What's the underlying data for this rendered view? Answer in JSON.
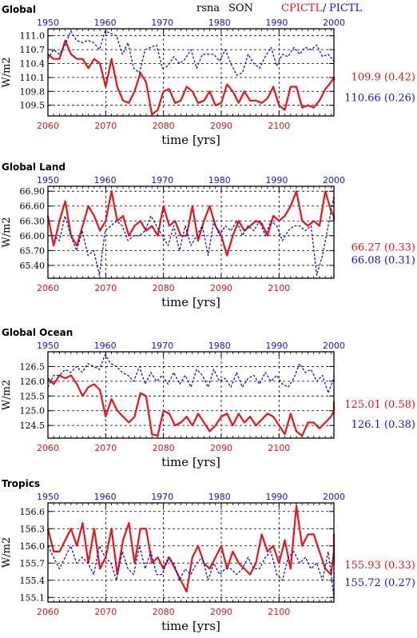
{
  "header": {
    "variable": "rsna",
    "season": "SON",
    "legend_red": "CPICTL",
    "legend_sep": "/",
    "legend_blue": "PICTL"
  },
  "colors": {
    "red": "#e8141a",
    "blue": "#1414d0",
    "black": "#000000"
  },
  "chart_data": [
    {
      "type": "line",
      "title": "Global",
      "xlabel": "time [yrs]",
      "ylabel": "W/m2",
      "grid": true,
      "x_bottom_ticks": [
        "2060",
        "2070",
        "2080",
        "2090",
        "2100"
      ],
      "x_top_ticks": [
        "1950",
        "1960",
        "1970",
        "1980",
        "1990",
        "2000"
      ],
      "ylim": [
        109.27,
        111.15
      ],
      "yticks": [
        "111.0",
        "110.7",
        "110.4",
        "110.1",
        "109.8",
        "109.5"
      ],
      "series": [
        {
          "name": "CPICTL",
          "axis": "bottom",
          "x_start": 2060,
          "summary": "109.9 (0.42)",
          "values": [
            110.6,
            110.5,
            110.5,
            110.9,
            110.6,
            110.5,
            110.5,
            110.3,
            110.5,
            110.4,
            109.9,
            110.5,
            109.9,
            109.6,
            109.55,
            109.8,
            110.2,
            110.0,
            109.3,
            109.4,
            109.8,
            109.85,
            109.55,
            109.6,
            109.9,
            109.8,
            109.55,
            109.6,
            109.8,
            109.5,
            109.55,
            109.95,
            109.8,
            109.55,
            109.8,
            109.6,
            109.6,
            109.55,
            109.65,
            109.9,
            109.5,
            109.4,
            109.9,
            109.9,
            109.45,
            109.5,
            109.45,
            109.6,
            109.85,
            110.0,
            110.1,
            110.05
          ]
        },
        {
          "name": "PICTL",
          "axis": "top",
          "x_start": 1950,
          "summary": "110.66 (0.26)",
          "values": [
            110.5,
            110.7,
            110.6,
            110.8,
            111.1,
            110.9,
            110.85,
            110.9,
            110.85,
            110.7,
            111.1,
            111.05,
            111.0,
            110.6,
            110.85,
            110.3,
            110.2,
            110.7,
            110.75,
            110.8,
            110.3,
            110.35,
            110.55,
            110.4,
            110.5,
            110.7,
            110.3,
            110.6,
            110.6,
            110.6,
            110.45,
            110.7,
            110.4,
            110.15,
            110.2,
            110.6,
            110.4,
            110.3,
            110.55,
            110.75,
            110.35,
            110.6,
            110.55,
            110.75,
            110.6,
            110.75,
            110.7,
            110.8,
            110.55,
            110.6,
            110.45,
            110.7
          ]
        }
      ]
    },
    {
      "type": "line",
      "title": "Global Land",
      "xlabel": "time [yrs]",
      "ylabel": "W/m2",
      "grid": true,
      "x_bottom_ticks": [
        "2060",
        "2070",
        "2080",
        "2090",
        "2100"
      ],
      "x_top_ticks": [
        "1950",
        "1960",
        "1970",
        "1980",
        "1990",
        "2000"
      ],
      "ylim": [
        65.14,
        67.0
      ],
      "yticks": [
        "66.90",
        "66.60",
        "66.30",
        "66.00",
        "65.70",
        "65.40"
      ],
      "series": [
        {
          "name": "CPICTL",
          "axis": "bottom",
          "x_start": 2060,
          "summary": "66.27 (0.33)",
          "values": [
            66.4,
            65.8,
            66.3,
            66.7,
            66.0,
            65.8,
            66.2,
            66.6,
            66.4,
            66.1,
            66.3,
            66.9,
            66.3,
            66.4,
            66.0,
            66.2,
            66.3,
            66.1,
            66.2,
            66.0,
            66.6,
            66.2,
            66.3,
            66.0,
            66.0,
            66.6,
            65.9,
            66.3,
            66.6,
            66.2,
            66.0,
            65.6,
            66.0,
            66.3,
            66.1,
            66.2,
            66.3,
            66.25,
            66.0,
            66.4,
            66.3,
            66.4,
            66.6,
            66.9,
            66.3,
            66.2,
            66.3,
            66.2,
            66.9,
            66.5,
            66.4,
            66.3
          ]
        },
        {
          "name": "PICTL",
          "axis": "top",
          "x_start": 1950,
          "summary": "66.08 (0.31)",
          "values": [
            66.0,
            66.0,
            65.9,
            66.4,
            66.0,
            65.7,
            66.1,
            65.6,
            65.7,
            65.2,
            66.1,
            66.2,
            66.3,
            66.2,
            65.9,
            66.0,
            66.0,
            66.1,
            66.4,
            66.2,
            66.0,
            65.8,
            66.2,
            65.7,
            66.2,
            65.8,
            66.0,
            66.2,
            65.6,
            66.3,
            66.0,
            66.2,
            66.1,
            66.3,
            66.0,
            66.2,
            66.1,
            66.3,
            66.0,
            66.3,
            66.2,
            65.9,
            66.1,
            66.2,
            66.2,
            66.1,
            66.2,
            65.2,
            65.6,
            66.2,
            66.8,
            66.3
          ]
        }
      ]
    },
    {
      "type": "line",
      "title": "Global Ocean",
      "xlabel": "time [yrs]",
      "ylabel": "W/m2",
      "grid": true,
      "x_bottom_ticks": [
        "2060",
        "2070",
        "2080",
        "2090",
        "2100"
      ],
      "x_top_ticks": [
        "1950",
        "1960",
        "1970",
        "1980",
        "1990",
        "2000"
      ],
      "ylim": [
        124.07,
        127.0
      ],
      "yticks": [
        "126.5",
        "126.0",
        "125.5",
        "125.0",
        "124.5"
      ],
      "series": [
        {
          "name": "CPICTL",
          "axis": "bottom",
          "x_start": 2060,
          "summary": "125.01 (0.58)",
          "values": [
            126.1,
            125.9,
            126.2,
            126.1,
            126.2,
            125.9,
            125.5,
            125.8,
            125.9,
            125.7,
            124.8,
            125.4,
            125.0,
            124.8,
            124.6,
            124.8,
            125.6,
            125.5,
            124.2,
            124.15,
            125.0,
            124.9,
            124.5,
            124.6,
            124.8,
            124.5,
            124.9,
            124.6,
            124.3,
            124.5,
            124.8,
            124.9,
            124.5,
            124.9,
            124.6,
            124.8,
            124.5,
            124.7,
            124.9,
            124.8,
            124.5,
            124.2,
            124.9,
            124.3,
            124.15,
            124.6,
            124.6,
            124.4,
            124.6,
            124.8,
            125.0,
            125.3,
            125.2
          ]
        },
        {
          "name": "PICTL",
          "axis": "top",
          "x_start": 1950,
          "summary": "126.1 (0.38)",
          "values": [
            125.8,
            126.2,
            126.2,
            126.4,
            126.3,
            126.5,
            126.3,
            126.6,
            126.5,
            126.4,
            126.9,
            126.6,
            126.5,
            126.3,
            126.2,
            126.0,
            126.5,
            125.9,
            126.3,
            126.0,
            126.2,
            125.9,
            126.3,
            125.9,
            126.2,
            125.8,
            126.4,
            126.2,
            125.8,
            126.4,
            126.0,
            126.1,
            125.8,
            126.3,
            125.8,
            126.1,
            126.2,
            125.9,
            126.3,
            126.0,
            126.2,
            125.9,
            125.8,
            126.1,
            126.6,
            126.3,
            126.4,
            126.0,
            126.2,
            125.6,
            126.1,
            126.2
          ]
        }
      ]
    },
    {
      "type": "line",
      "title": "Tropics",
      "xlabel": "time [yrs]",
      "ylabel": "W/m2",
      "grid": true,
      "x_bottom_ticks": [
        "2060",
        "2070",
        "2080",
        "2090",
        "2100"
      ],
      "x_top_ticks": [
        "1950",
        "1960",
        "1970",
        "1980",
        "1990",
        "2000"
      ],
      "ylim": [
        155.02,
        156.75
      ],
      "yticks": [
        "156.6",
        "156.3",
        "156.0",
        "155.7",
        "155.4",
        "155.1"
      ],
      "series": [
        {
          "name": "CPICTL",
          "axis": "bottom",
          "x_start": 2060,
          "summary": "155.93 (0.33)",
          "values": [
            156.3,
            155.9,
            155.9,
            156.1,
            156.3,
            156.0,
            156.4,
            155.7,
            156.3,
            155.6,
            155.8,
            156.3,
            155.5,
            156.1,
            156.4,
            155.7,
            156.3,
            156.3,
            155.7,
            155.8,
            155.6,
            155.8,
            155.6,
            155.4,
            155.2,
            155.8,
            156.0,
            155.7,
            155.6,
            155.8,
            156.0,
            155.6,
            155.9,
            155.7,
            155.6,
            155.5,
            155.7,
            156.2,
            155.9,
            156.0,
            155.7,
            156.1,
            155.6,
            156.7,
            156.0,
            156.2,
            156.2,
            155.9,
            155.6,
            155.5,
            155.9,
            155.9,
            156.1,
            156.0,
            156.2,
            155.7
          ]
        },
        {
          "name": "PICTL",
          "axis": "top",
          "x_start": 1950,
          "summary": "155.72 (0.27)",
          "values": [
            156.0,
            155.8,
            155.6,
            155.8,
            156.0,
            155.7,
            155.8,
            155.7,
            155.5,
            156.0,
            155.8,
            155.7,
            155.4,
            155.9,
            155.6,
            155.5,
            156.0,
            155.6,
            155.9,
            155.5,
            155.5,
            155.8,
            155.7,
            155.4,
            155.6,
            155.5,
            155.7,
            155.8,
            155.4,
            155.7,
            155.5,
            155.6,
            155.6,
            155.5,
            155.6,
            155.8,
            155.6,
            155.6,
            155.8,
            155.9,
            155.5,
            155.4,
            155.8,
            155.9,
            155.7,
            155.8,
            155.6,
            155.7,
            155.4,
            155.9,
            155.1,
            155.7
          ]
        }
      ]
    }
  ]
}
